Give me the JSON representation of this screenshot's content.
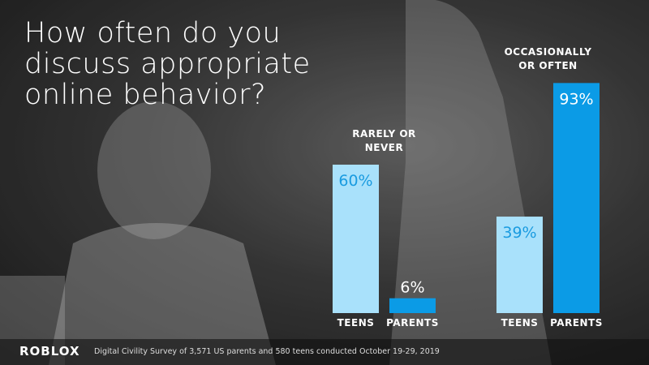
{
  "chart_data": {
    "type": "bar",
    "title": "How often do you discuss appropriate online behavior?",
    "categories": [
      "RARELY OR NEVER",
      "OCCASIONALLY OR OFTEN"
    ],
    "series": [
      {
        "name": "TEENS",
        "color": "#a9e1fb",
        "values": [
          60,
          39
        ],
        "value_labels": [
          "60%",
          "39%"
        ]
      },
      {
        "name": "PARENTS",
        "color": "#0b9be6",
        "values": [
          6,
          93
        ],
        "value_labels": [
          "6%",
          "93%"
        ]
      }
    ],
    "ylim": [
      0,
      100
    ],
    "logo": "ROBLOX",
    "source": "Digital Civility Survey of 3,571 US parents and 580 teens conducted October 19-29, 2019"
  }
}
